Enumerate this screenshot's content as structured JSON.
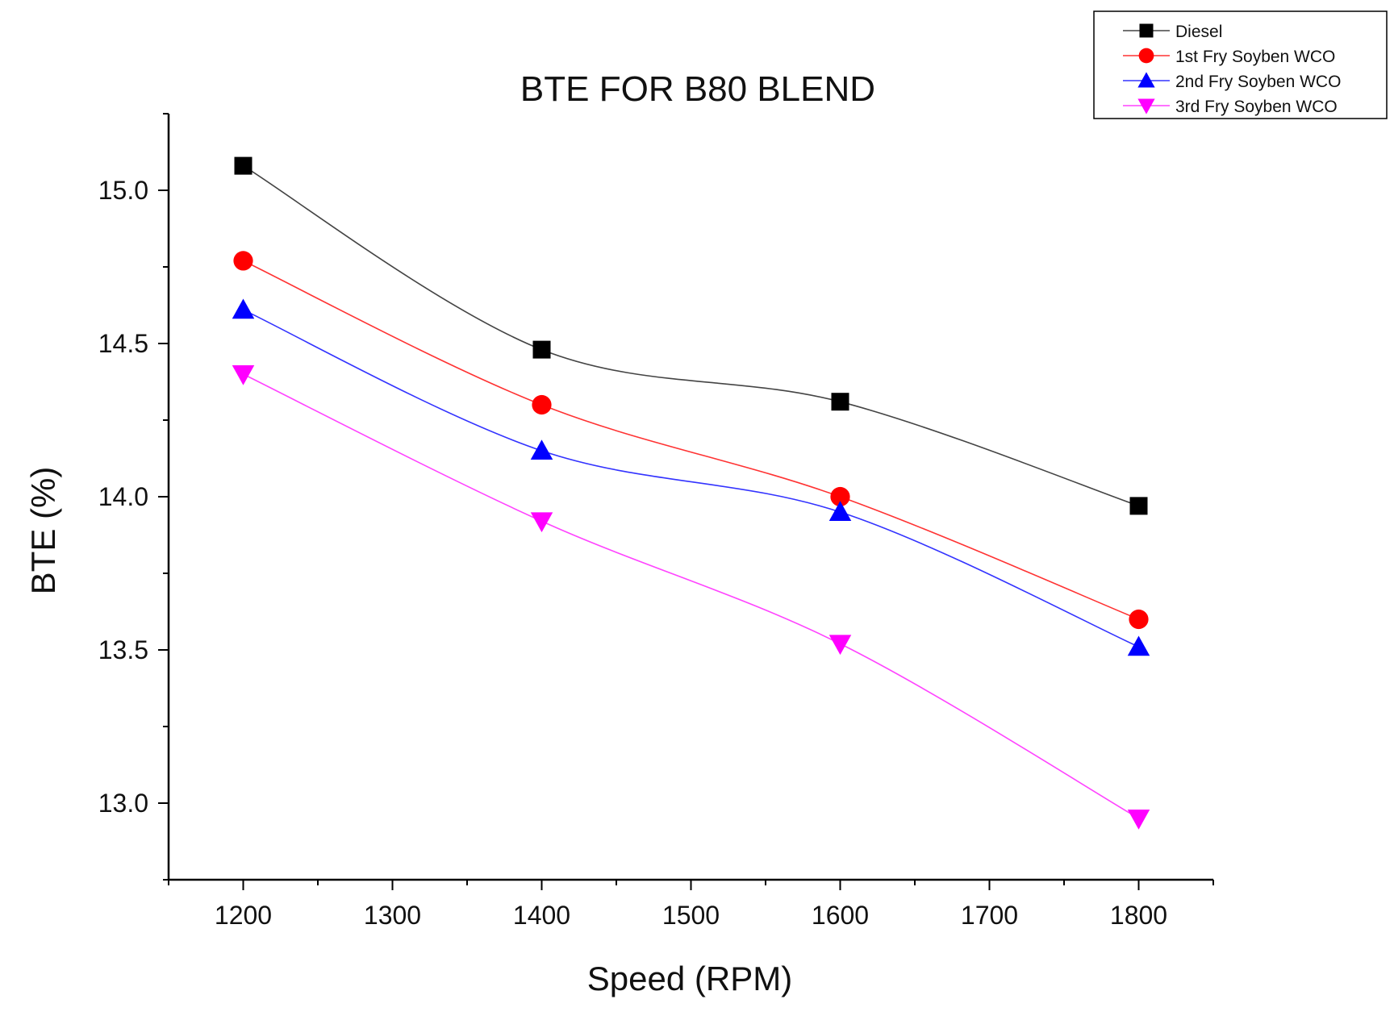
{
  "chart_data": {
    "type": "line",
    "title": "BTE FOR B80 BLEND",
    "xlabel": "Speed (RPM)",
    "ylabel": "BTE (%)",
    "xlim": [
      1150,
      1850
    ],
    "ylim": [
      12.75,
      15.25
    ],
    "x": [
      1200,
      1400,
      1600,
      1800
    ],
    "xticks": [
      1200,
      1300,
      1400,
      1500,
      1600,
      1700,
      1800
    ],
    "yticks": [
      13.0,
      13.5,
      14.0,
      14.5,
      15.0
    ],
    "xtick_labels": [
      "1200",
      "1300",
      "1400",
      "1500",
      "1600",
      "1700",
      "1800"
    ],
    "ytick_labels": [
      "13.0",
      "13.5",
      "14.0",
      "14.5",
      "15.0"
    ],
    "legend_position": "top-right",
    "series": [
      {
        "name": "Diesel",
        "values": [
          15.08,
          14.48,
          14.31,
          13.97
        ],
        "color": "#000000",
        "line_color": "#444444",
        "marker": "square"
      },
      {
        "name": "1st Fry Soyben WCO",
        "values": [
          14.77,
          14.3,
          14.0,
          13.6
        ],
        "color": "#ff0000",
        "line_color": "#ff3333",
        "marker": "circle"
      },
      {
        "name": "2nd Fry Soyben WCO",
        "values": [
          14.61,
          14.15,
          13.95,
          13.51
        ],
        "color": "#0000ff",
        "line_color": "#3333ff",
        "marker": "triangle-up"
      },
      {
        "name": "3rd Fry Soyben WCO",
        "values": [
          14.4,
          13.92,
          13.52,
          12.95
        ],
        "color": "#ff00ff",
        "line_color": "#ff44ff",
        "marker": "triangle-down"
      }
    ]
  }
}
